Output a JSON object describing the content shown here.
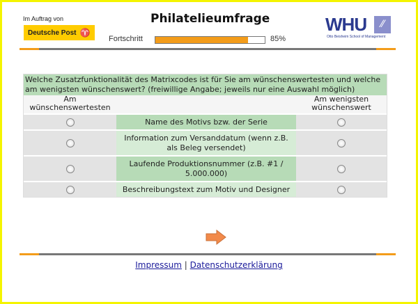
{
  "header": {
    "sponsor_label": "Im Auftrag von",
    "sponsor": "Deutsche Post",
    "title": "Philatelieumfrage",
    "progress_label": "Fortschritt",
    "progress_percent": 85,
    "progress_text": "85%",
    "school_logo": "WHU",
    "school_subtitle": "Otto Beisheim School of Management"
  },
  "survey": {
    "question": "Welche Zusatzfunktionalität des Matrixcodes ist für Sie am wünschenswertesten und welche am wenigsten wünschenswert? (freiwillige Angabe; jeweils nur eine Auswahl möglich)",
    "col_left": "Am wünschenswertesten",
    "col_right": "Am wenigsten wünschenswert",
    "items": [
      {
        "label": "Name des Motivs bzw. der Serie"
      },
      {
        "label": "Information zum Versanddatum (wenn z.B. als Beleg versendet)"
      },
      {
        "label": "Laufende Produktionsnummer (z.B. #1 / 5.000.000)"
      },
      {
        "label": "Beschreibungstext zum Motiv und Designer"
      }
    ]
  },
  "nav": {
    "next_icon": "arrow-right-icon"
  },
  "footer": {
    "impressum": "Impressum",
    "separator": "|",
    "privacy": "Datenschutzerklärung"
  },
  "colors": {
    "accent": "#f39c1a",
    "border": "#f4f400",
    "question_bg": "#b7dbb7"
  }
}
